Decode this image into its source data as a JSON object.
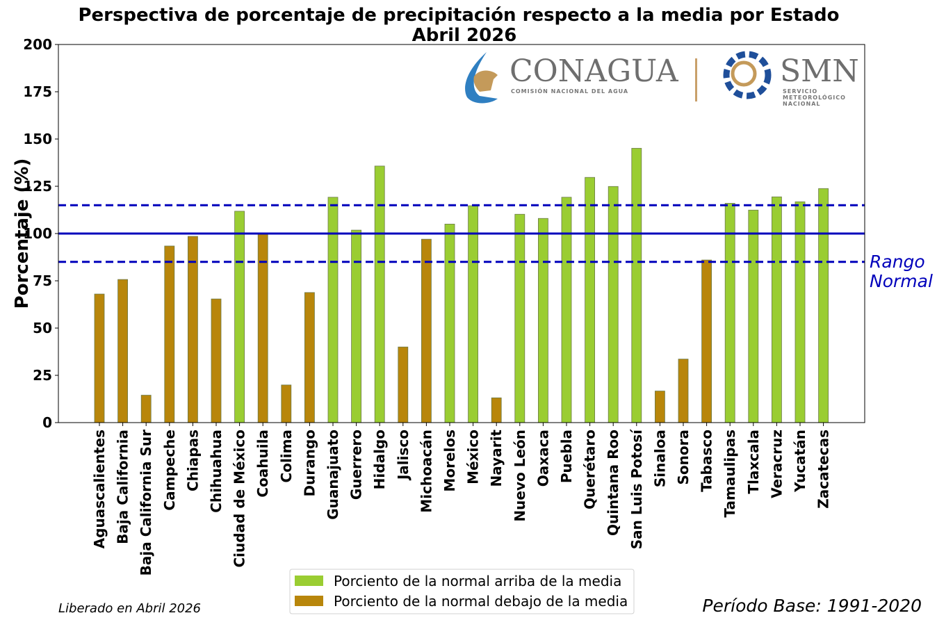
{
  "chart_data": {
    "type": "bar",
    "title": "Perspectiva de porcentaje de precipitación respecto a la media por Estado",
    "subtitle": "Abril 2026",
    "xlabel": "",
    "ylabel": "Porcentaje (%)",
    "ylim": [
      0,
      200
    ],
    "yticks": [
      0,
      25,
      50,
      75,
      100,
      125,
      150,
      175,
      200
    ],
    "grid": false,
    "categories": [
      "Aguascalientes",
      "Baja California",
      "Baja California Sur",
      "Campeche",
      "Chiapas",
      "Chihuahua",
      "Ciudad de México",
      "Coahuila",
      "Colima",
      "Durango",
      "Guanajuato",
      "Guerrero",
      "Hidalgo",
      "Jalisco",
      "Michoacán",
      "Morelos",
      "México",
      "Nayarit",
      "Nuevo León",
      "Oaxaca",
      "Puebla",
      "Querétaro",
      "Quintana Roo",
      "San Luis Potosí",
      "Sinaloa",
      "Sonora",
      "Tabasco",
      "Tamaulipas",
      "Tlaxcala",
      "Veracruz",
      "Yucatán",
      "Zacatecas"
    ],
    "values": [
      68,
      75.7,
      14.5,
      93.4,
      98.5,
      65.4,
      111.8,
      99.6,
      19.9,
      68.8,
      119.2,
      101.8,
      135.7,
      40,
      97,
      105,
      114.7,
      13.1,
      110.2,
      108,
      119.2,
      129.7,
      124.9,
      145.1,
      16.7,
      33.6,
      86,
      116,
      112.4,
      119.4,
      116.8,
      123.8
    ],
    "threshold": 100,
    "reference_lines": [
      {
        "value": 100,
        "style": "solid",
        "color": "#0000bb"
      },
      {
        "value": 115,
        "style": "dashed",
        "color": "#0000bb"
      },
      {
        "value": 85,
        "style": "dashed",
        "color": "#0000bb"
      }
    ],
    "annotation": {
      "lines": [
        "Rango",
        "Normal"
      ],
      "color": "#0000bb"
    },
    "colors": {
      "above": "#9acd32",
      "below": "#b8860b",
      "edge": "#6b7a4a"
    },
    "legend": {
      "placement": "bottom-center",
      "entries": [
        {
          "label": "Porciento de la normal arriba de la media",
          "color": "#9acd32"
        },
        {
          "label": "Porciento de la normal debajo de la media",
          "color": "#b8860b"
        }
      ]
    }
  },
  "footer": {
    "released": "Liberado en Abril 2026",
    "base_period": "Período Base: 1991-2020"
  },
  "logos": {
    "conagua": {
      "name": "CONAGUA",
      "subtitle": "COMISIÓN NACIONAL DEL AGUA"
    },
    "smn": {
      "name": "SMN",
      "subtitle_lines": [
        "SERVICIO",
        "METEOROLÓGICO",
        "NACIONAL"
      ]
    }
  }
}
